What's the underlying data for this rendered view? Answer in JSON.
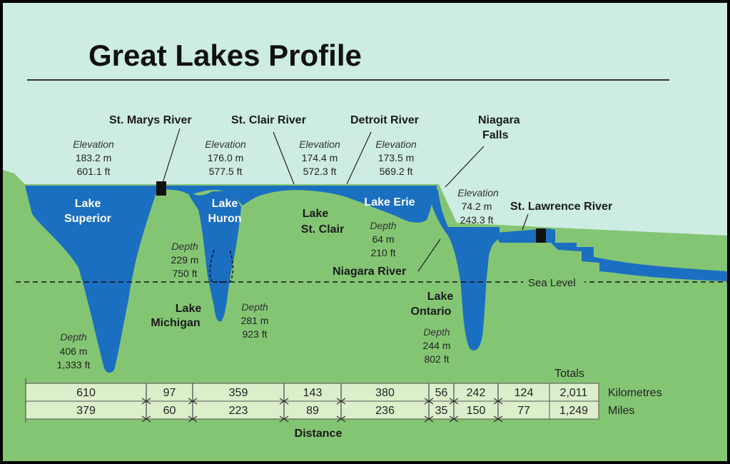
{
  "title": "Great Lakes Profile",
  "colors": {
    "sky": "#cdece3",
    "land": "#84c574",
    "water": "#1b6fc0",
    "band": "#dcefcb"
  },
  "lakes": {
    "superior": {
      "name_line1": "Lake",
      "name_line2": "Superior",
      "elevation_label": "Elevation",
      "elevation_m": "183.2 m",
      "elevation_ft": "601.1 ft",
      "depth_label": "Depth",
      "depth_m": "406 m",
      "depth_ft": "1,333 ft"
    },
    "huron": {
      "name_line1": "Lake",
      "name_line2": "Huron",
      "elevation_label": "Elevation",
      "elevation_m": "176.0 m",
      "elevation_ft": "577.5 ft",
      "depth_label": "Depth",
      "depth_m": "229 m",
      "depth_ft": "750 ft"
    },
    "michigan": {
      "name_line1": "Lake",
      "name_line2": "Michigan",
      "depth_label": "Depth",
      "depth_m": "281 m",
      "depth_ft": "923 ft"
    },
    "st_clair": {
      "name_line1": "Lake",
      "name_line2": "St. Clair",
      "elevation_label": "Elevation",
      "elevation_m": "174.4 m",
      "elevation_ft": "572.3 ft"
    },
    "erie": {
      "name": "Lake Erie",
      "elevation_label": "Elevation",
      "elevation_m": "173.5 m",
      "elevation_ft": "569.2 ft",
      "depth_label": "Depth",
      "depth_m": "64 m",
      "depth_ft": "210 ft"
    },
    "ontario": {
      "name_line1": "Lake",
      "name_line2": "Ontario",
      "elevation_label": "Elevation",
      "elevation_m": "74.2 m",
      "elevation_ft": "243.3 ft",
      "depth_label": "Depth",
      "depth_m": "244 m",
      "depth_ft": "802 ft"
    }
  },
  "rivers": {
    "st_marys": "St. Marys River",
    "st_clair": "St. Clair River",
    "detroit": "Detroit River",
    "niagara_falls_line1": "Niagara",
    "niagara_falls_line2": "Falls",
    "niagara_river": "Niagara River",
    "st_lawrence": "St. Lawrence River"
  },
  "sea_level": "Sea Level",
  "distance": {
    "totals_label": "Totals",
    "km_label": "Kilometres",
    "mi_label": "Miles",
    "caption": "Distance",
    "km": [
      "610",
      "97",
      "359",
      "143",
      "380",
      "56",
      "242",
      "124"
    ],
    "mi": [
      "379",
      "60",
      "223",
      "89",
      "236",
      "35",
      "150",
      "77"
    ],
    "total_km": "2,011",
    "total_mi": "1,249"
  }
}
